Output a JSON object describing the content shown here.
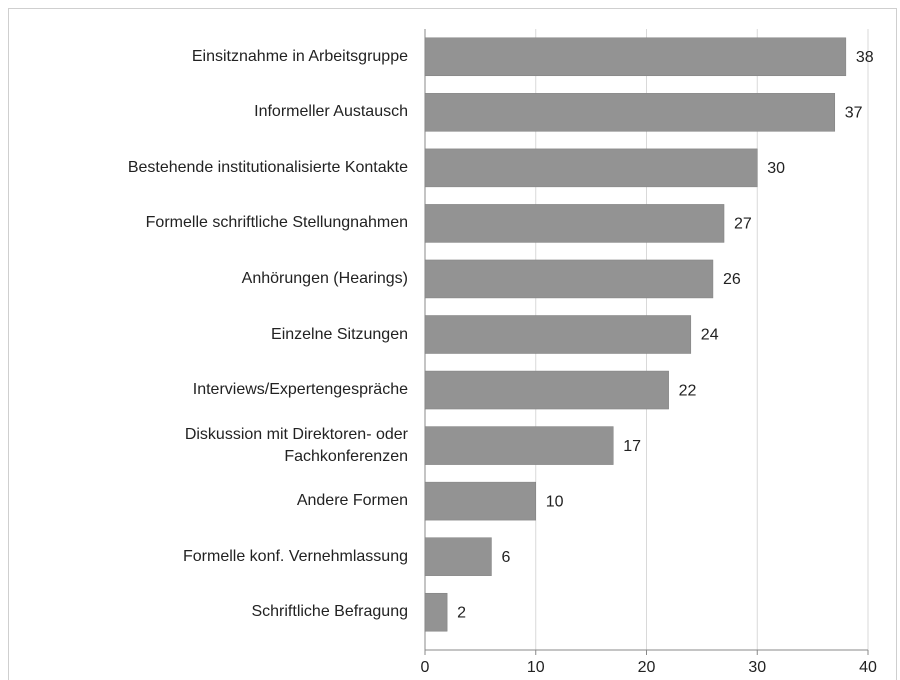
{
  "chart_data": {
    "type": "bar",
    "orientation": "horizontal",
    "categories": [
      "Einsitznahme in Arbeitsgruppe",
      "Informeller Austausch",
      "Bestehende institutionalisierte Kontakte",
      "Formelle schriftliche Stellungnahmen",
      "Anhörungen (Hearings)",
      "Einzelne Sitzungen",
      "Interviews/Expertengespräche",
      "Diskussion mit Direktoren- oder\nFachkonferenzen",
      "Andere Formen",
      "Formelle konf. Vernehmlassung",
      "Schriftliche Befragung"
    ],
    "values": [
      38,
      37,
      30,
      27,
      26,
      24,
      22,
      17,
      10,
      6,
      2
    ],
    "color": "#939393",
    "xlim": [
      0,
      40
    ],
    "xticks": [
      0,
      10,
      20,
      30,
      40
    ],
    "grid": true
  }
}
